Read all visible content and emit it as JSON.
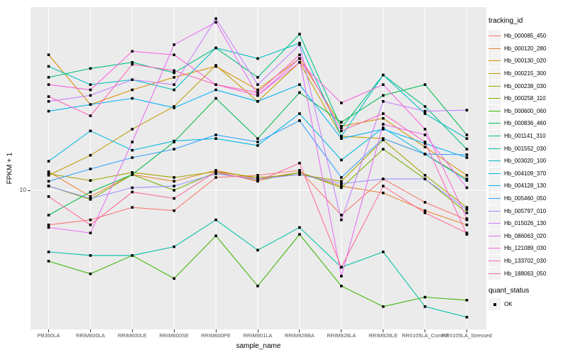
{
  "axes": {
    "x_title": "sample_name",
    "y_title": "FPKM + 1",
    "y_tick_label": "10"
  },
  "legend": {
    "tracking_title": "tracking_id",
    "quant_title": "quant_status",
    "quant_ok_label": "OK"
  },
  "style": {
    "panel_bg": "#EBEBEB",
    "grid_color": "#FFFFFF",
    "tick_color": "#333333",
    "point_color": "#000000"
  },
  "chart_data": {
    "type": "line",
    "title": "",
    "xlabel": "sample_name",
    "ylabel": "FPKM + 1",
    "y_scale": "log10",
    "y_tick_labels": [
      "10"
    ],
    "y_gridline_value": 10,
    "ylim": [
      2.0,
      84
    ],
    "grid": "vertical-majors-plus-y10",
    "legend_position": "right",
    "point_shape": "filled-black-square",
    "categories": [
      "PB350LA",
      "RRIM600LA",
      "RRIM600LE",
      "RRIM600SE",
      "RRIM600PE",
      "RRIM901LA",
      "RRIM928BA",
      "RRIM928LA",
      "RRIM928LE",
      "RRII105LA_Control",
      "RRII105LA_Stressed"
    ],
    "quant_status_values": [
      "OK"
    ],
    "series": [
      {
        "name": "Hb_000085_450",
        "color": "#F8766D",
        "values": [
          6.7,
          7.1,
          8.2,
          7.9,
          11.6,
          11.9,
          12.6,
          7.5,
          11.4,
          8.7,
          7.1
        ]
      },
      {
        "name": "Hb_000120_280",
        "color": "#EA8331",
        "values": [
          12.4,
          9.3,
          12.0,
          11.1,
          12.6,
          11.4,
          12.3,
          10.5,
          9.7,
          7.9,
          6.7
        ]
      },
      {
        "name": "Hb_000130_020",
        "color": "#D89000",
        "values": [
          48,
          27,
          32,
          37,
          42,
          32,
          46,
          21,
          23,
          16.5,
          11.9
        ]
      },
      {
        "name": "Hb_000215_300",
        "color": "#C09B00",
        "values": [
          11.9,
          15,
          20.3,
          26.4,
          42.5,
          28,
          44,
          18.7,
          18.2,
          15.2,
          11.4
        ]
      },
      {
        "name": "Hb_000238_030",
        "color": "#A3A500",
        "values": [
          12.1,
          11.2,
          12.3,
          11.6,
          12.4,
          11.6,
          12.0,
          11.1,
          17.9,
          11.9,
          8.2
        ]
      },
      {
        "name": "Hb_000258_110",
        "color": "#7CAE00",
        "values": [
          10.5,
          9.0,
          12.0,
          10.0,
          12.3,
          11.2,
          12.3,
          10.3,
          16.1,
          11.4,
          7.7
        ]
      },
      {
        "name": "Hb_000600_060",
        "color": "#39B600",
        "values": [
          4.4,
          3.8,
          4.7,
          3.6,
          5.9,
          3.3,
          6.0,
          3.3,
          2.6,
          2.9,
          2.8
        ]
      },
      {
        "name": "Hb_000836_460",
        "color": "#00BB4E",
        "values": [
          7.5,
          9.8,
          12.0,
          17.5,
          29,
          18.2,
          31,
          22,
          30,
          34,
          19
        ]
      },
      {
        "name": "Hb_001141_310",
        "color": "#00BF7D",
        "values": [
          37,
          41,
          44,
          39,
          52,
          37,
          61,
          20.6,
          38,
          26.4,
          16.1
        ]
      },
      {
        "name": "Hb_001552_030",
        "color": "#00C1A3",
        "values": [
          4.9,
          4.7,
          4.7,
          5.2,
          7.1,
          5.0,
          6.5,
          4.1,
          4.9,
          2.6,
          2.3
        ]
      },
      {
        "name": "Hb_003020_100",
        "color": "#00BFC4",
        "values": [
          42,
          34,
          36,
          32,
          52,
          46,
          55,
          18.7,
          38,
          24.3,
          18.2
        ]
      },
      {
        "name": "Hb_004109_370",
        "color": "#00BAE0",
        "values": [
          14,
          19.9,
          15.9,
          17.7,
          18.2,
          16.8,
          24.3,
          14.2,
          20.6,
          15.2,
          11.2
        ]
      },
      {
        "name": "Hb_004128_130",
        "color": "#00B0F6",
        "values": [
          25,
          27,
          29,
          26,
          32,
          28,
          34,
          18.2,
          20.3,
          17.2,
          14.6
        ]
      },
      {
        "name": "Hb_005460_050",
        "color": "#35A2FF",
        "values": [
          11.1,
          12.8,
          14.6,
          16.1,
          19.0,
          17.5,
          22.4,
          11.6,
          18.2,
          15.2,
          15.1
        ]
      },
      {
        "name": "Hb_005797_010",
        "color": "#9590FF",
        "values": [
          10.5,
          9.1,
          10.3,
          10.5,
          12.1,
          11.4,
          12.0,
          10.8,
          11.4,
          11.4,
          8.0
        ]
      },
      {
        "name": "Hb_015026_130",
        "color": "#C77CFF",
        "values": [
          28,
          30,
          36,
          34,
          73,
          34,
          54,
          7.1,
          28,
          25,
          25.3
        ]
      },
      {
        "name": "Hb_086063_020",
        "color": "#E76BF3",
        "values": [
          6.5,
          6.1,
          17.5,
          54,
          70,
          30,
          46,
          3.7,
          21.5,
          19,
          10.3
        ]
      },
      {
        "name": "Hb_121089_030",
        "color": "#FA62DB",
        "values": [
          34,
          32,
          50,
          48,
          34,
          30,
          44,
          27.5,
          34,
          20.3,
          7.2
        ]
      },
      {
        "name": "Hb_133702_030",
        "color": "#FF62BC",
        "values": [
          29.6,
          23.7,
          43,
          40,
          34,
          31,
          48,
          19.9,
          24.3,
          17.5,
          6.0
        ]
      },
      {
        "name": "Hb_188063_050",
        "color": "#FF6A98",
        "values": [
          9.3,
          6.7,
          9.8,
          9.1,
          12.4,
          11.1,
          13.7,
          4.1,
          10.5,
          7.7,
          6.1
        ]
      }
    ]
  }
}
